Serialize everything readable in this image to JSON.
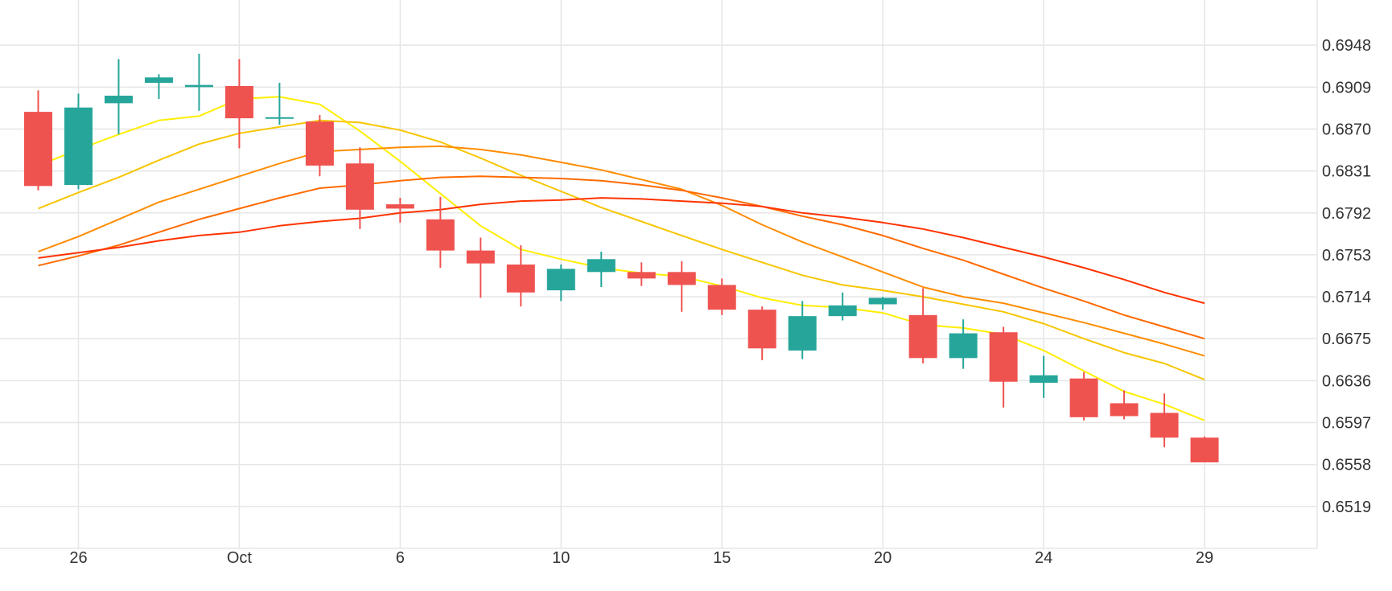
{
  "chart_data": {
    "type": "candlestick",
    "x_tick_labels": [
      {
        "label": "26",
        "bar": 1
      },
      {
        "label": "Oct",
        "bar": 5
      },
      {
        "label": "6",
        "bar": 9
      },
      {
        "label": "10",
        "bar": 13
      },
      {
        "label": "15",
        "bar": 17
      },
      {
        "label": "20",
        "bar": 21
      },
      {
        "label": "24",
        "bar": 25
      },
      {
        "label": "29",
        "bar": 29
      }
    ],
    "y_ticks": [
      "0.6519",
      "0.6558",
      "0.6597",
      "0.6636",
      "0.6675",
      "0.6714",
      "0.6753",
      "0.6792",
      "0.6831",
      "0.6870",
      "0.6909",
      "0.6948"
    ],
    "ylim": [
      0.648,
      0.699
    ],
    "xlim_bars": [
      -0.95,
      31.8
    ],
    "grid": true,
    "colors": {
      "up": "#26a69a",
      "down": "#ef5350",
      "grid": "#e6e6e6",
      "axis_text": "#333333"
    },
    "candles": [
      {
        "open": 0.6886,
        "high": 0.6906,
        "low": 0.6813,
        "close": 0.6817
      },
      {
        "open": 0.6818,
        "high": 0.6903,
        "low": 0.6814,
        "close": 0.689
      },
      {
        "open": 0.6894,
        "high": 0.6935,
        "low": 0.6865,
        "close": 0.6901
      },
      {
        "open": 0.6913,
        "high": 0.6921,
        "low": 0.6898,
        "close": 0.6918
      },
      {
        "open": 0.6909,
        "high": 0.694,
        "low": 0.6887,
        "close": 0.6911
      },
      {
        "open": 0.691,
        "high": 0.6935,
        "low": 0.6852,
        "close": 0.688
      },
      {
        "open": 0.688,
        "high": 0.6913,
        "low": 0.6874,
        "close": 0.6881
      },
      {
        "open": 0.6877,
        "high": 0.6883,
        "low": 0.6826,
        "close": 0.6836
      },
      {
        "open": 0.6838,
        "high": 0.6853,
        "low": 0.6777,
        "close": 0.6795
      },
      {
        "open": 0.68,
        "high": 0.6806,
        "low": 0.6783,
        "close": 0.6796
      },
      {
        "open": 0.6786,
        "high": 0.6807,
        "low": 0.6741,
        "close": 0.6757
      },
      {
        "open": 0.6757,
        "high": 0.6769,
        "low": 0.6713,
        "close": 0.6745
      },
      {
        "open": 0.6744,
        "high": 0.6762,
        "low": 0.6705,
        "close": 0.6718
      },
      {
        "open": 0.672,
        "high": 0.6744,
        "low": 0.671,
        "close": 0.674
      },
      {
        "open": 0.6737,
        "high": 0.6756,
        "low": 0.6723,
        "close": 0.6749
      },
      {
        "open": 0.6737,
        "high": 0.6746,
        "low": 0.6724,
        "close": 0.6731
      },
      {
        "open": 0.6737,
        "high": 0.6747,
        "low": 0.67,
        "close": 0.6725
      },
      {
        "open": 0.6725,
        "high": 0.6731,
        "low": 0.6697,
        "close": 0.6702
      },
      {
        "open": 0.6702,
        "high": 0.6705,
        "low": 0.6655,
        "close": 0.6666
      },
      {
        "open": 0.6664,
        "high": 0.671,
        "low": 0.6656,
        "close": 0.6696
      },
      {
        "open": 0.6696,
        "high": 0.6718,
        "low": 0.6692,
        "close": 0.6706
      },
      {
        "open": 0.6707,
        "high": 0.6714,
        "low": 0.6702,
        "close": 0.6713
      },
      {
        "open": 0.6697,
        "high": 0.6722,
        "low": 0.6652,
        "close": 0.6657
      },
      {
        "open": 0.6657,
        "high": 0.6693,
        "low": 0.6647,
        "close": 0.668
      },
      {
        "open": 0.6681,
        "high": 0.6686,
        "low": 0.6611,
        "close": 0.6635
      },
      {
        "open": 0.6634,
        "high": 0.6659,
        "low": 0.662,
        "close": 0.6641
      },
      {
        "open": 0.6638,
        "high": 0.6644,
        "low": 0.6599,
        "close": 0.6602
      },
      {
        "open": 0.6615,
        "high": 0.6627,
        "low": 0.66,
        "close": 0.6603
      },
      {
        "open": 0.6606,
        "high": 0.6624,
        "low": 0.6574,
        "close": 0.6583
      },
      {
        "open": 0.6583,
        "high": 0.6584,
        "low": 0.656,
        "close": 0.656
      }
    ],
    "moving_averages": [
      {
        "color": "#ffee00",
        "values": [
          0.6836,
          0.6851,
          0.6865,
          0.6878,
          0.6882,
          0.6898,
          0.69,
          0.6893,
          0.6868,
          0.684,
          0.681,
          0.678,
          0.6758,
          0.6749,
          0.6741,
          0.6736,
          0.6733,
          0.6724,
          0.6713,
          0.6706,
          0.6704,
          0.6699,
          0.6688,
          0.6685,
          0.6679,
          0.6664,
          0.6645,
          0.6626,
          0.6614,
          0.6599
        ]
      },
      {
        "color": "#f7c600",
        "values": [
          0.6796,
          0.6811,
          0.6825,
          0.6841,
          0.6856,
          0.6866,
          0.6872,
          0.6878,
          0.6876,
          0.6869,
          0.6858,
          0.6843,
          0.6827,
          0.6812,
          0.6797,
          0.6784,
          0.6771,
          0.6758,
          0.6746,
          0.6734,
          0.6725,
          0.672,
          0.6714,
          0.6707,
          0.67,
          0.6689,
          0.6675,
          0.6662,
          0.6652,
          0.6637
        ]
      },
      {
        "color": "#ff8c00",
        "values": [
          0.6756,
          0.677,
          0.6786,
          0.6802,
          0.6814,
          0.6826,
          0.6838,
          0.6849,
          0.6851,
          0.6853,
          0.6854,
          0.6851,
          0.6846,
          0.6839,
          0.6832,
          0.6823,
          0.6814,
          0.6799,
          0.6781,
          0.6765,
          0.6751,
          0.6737,
          0.6723,
          0.6714,
          0.6708,
          0.6699,
          0.669,
          0.668,
          0.667,
          0.6659
        ]
      },
      {
        "color": "#ff6a00",
        "values": [
          0.6743,
          0.6752,
          0.6762,
          0.6774,
          0.6786,
          0.6796,
          0.6806,
          0.6815,
          0.6818,
          0.6822,
          0.6825,
          0.6826,
          0.6825,
          0.6824,
          0.6822,
          0.6818,
          0.6813,
          0.6806,
          0.6798,
          0.6789,
          0.6781,
          0.6771,
          0.6759,
          0.6748,
          0.6735,
          0.6722,
          0.671,
          0.6697,
          0.6686,
          0.6675
        ]
      },
      {
        "color": "#ff3300",
        "values": [
          0.675,
          0.6755,
          0.676,
          0.6766,
          0.6771,
          0.6774,
          0.678,
          0.6784,
          0.6787,
          0.6792,
          0.6795,
          0.68,
          0.6803,
          0.6804,
          0.6806,
          0.6805,
          0.6803,
          0.6801,
          0.6798,
          0.6792,
          0.6788,
          0.6783,
          0.6777,
          0.6769,
          0.676,
          0.6751,
          0.6741,
          0.673,
          0.6718,
          0.6708
        ]
      }
    ]
  }
}
